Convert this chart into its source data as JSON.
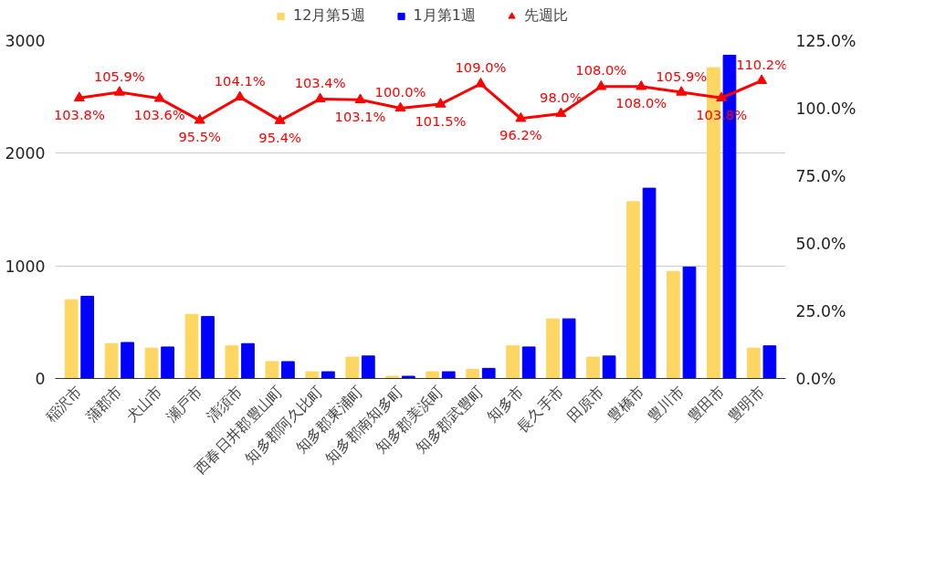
{
  "chart_data": {
    "type": "bar",
    "categories": [
      "稲沢市",
      "蒲郡市",
      "犬山市",
      "瀬戸市",
      "清須市",
      "西春日井郡豊山町",
      "知多郡阿久比町",
      "知多郡東浦町",
      "知多郡南知多町",
      "知多郡美浜町",
      "知多郡武豊町",
      "知多市",
      "長久手市",
      "田原市",
      "豊橋市",
      "豊川市",
      "豊田市",
      "豊明市"
    ],
    "series": [
      {
        "name": "12月第5週",
        "color": "#fdd663",
        "values": [
          700,
          310,
          270,
          570,
          290,
          150,
          60,
          190,
          20,
          60,
          80,
          290,
          530,
          190,
          1570,
          950,
          2760,
          270
        ]
      },
      {
        "name": "1月第1週",
        "color": "#0000ff",
        "values": [
          730,
          320,
          280,
          550,
          310,
          150,
          60,
          200,
          20,
          60,
          90,
          280,
          530,
          200,
          1690,
          990,
          2870,
          290
        ]
      },
      {
        "name": "先週比",
        "color": "#ff0000",
        "type": "line",
        "axis": "y2",
        "marker": "triangle",
        "values": [
          103.8,
          105.9,
          103.6,
          95.5,
          104.1,
          95.4,
          103.4,
          103.1,
          100.0,
          101.5,
          109.0,
          96.2,
          98.0,
          108.0,
          108.0,
          105.9,
          103.8,
          110.2
        ],
        "value_labels": [
          "103.8%",
          "105.9%",
          "103.6%",
          "95.5%",
          "104.1%",
          "95.4%",
          "103.4%",
          "103.1%",
          "100.0%",
          "101.5%",
          "109.0%",
          "96.2%",
          "98.0%",
          "108.0%",
          "108.0%",
          "105.9%",
          "103.8%",
          "110.2%"
        ]
      }
    ],
    "ylim": [
      0,
      3000
    ],
    "yticks": [
      0,
      1000,
      2000,
      3000
    ],
    "y2lim": [
      0,
      125
    ],
    "y2ticks": [
      {
        "value": 0,
        "label": "0.0%"
      },
      {
        "value": 25,
        "label": "25.0%"
      },
      {
        "value": 50,
        "label": "50.0%"
      },
      {
        "value": 75,
        "label": "75.0%"
      },
      {
        "value": 100,
        "label": "100.0%"
      },
      {
        "value": 125,
        "label": "125.0%"
      }
    ],
    "grid": "y",
    "legend": "top"
  }
}
